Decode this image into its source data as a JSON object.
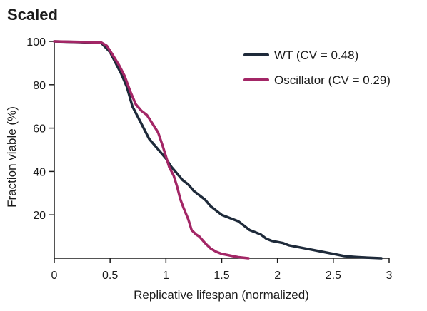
{
  "chart_data": {
    "type": "line",
    "title": "Scaled",
    "xlabel": "Replicative lifespan (normalized)",
    "ylabel": "Fraction viable (%)",
    "xlim": [
      0,
      3
    ],
    "ylim": [
      0,
      100
    ],
    "xticks": [
      0,
      0.5,
      1,
      1.5,
      2,
      2.5,
      3
    ],
    "xtick_labels": [
      "0",
      "0.5",
      "1",
      "1.5",
      "2",
      "2.5",
      "3"
    ],
    "yticks": [
      20,
      40,
      60,
      80,
      100
    ],
    "ytick_labels": [
      "20",
      "40",
      "60",
      "80",
      "100"
    ],
    "grid": false,
    "legend_position": "top-right",
    "series": [
      {
        "name": "WT (CV = 0.48)",
        "color": "#1e2a3a",
        "x": [
          0,
          0.2,
          0.42,
          0.5,
          0.55,
          0.6,
          0.65,
          0.7,
          0.75,
          0.8,
          0.85,
          0.9,
          0.95,
          1.0,
          1.05,
          1.1,
          1.15,
          1.2,
          1.25,
          1.3,
          1.35,
          1.4,
          1.45,
          1.5,
          1.55,
          1.6,
          1.65,
          1.7,
          1.75,
          1.8,
          1.85,
          1.9,
          1.95,
          2.0,
          2.05,
          2.1,
          2.2,
          2.3,
          2.4,
          2.5,
          2.6,
          2.7,
          2.8,
          2.93
        ],
        "y": [
          100,
          99.7,
          99.3,
          95,
          90,
          85,
          79,
          70,
          65,
          60,
          55,
          52,
          49,
          46,
          42,
          39,
          36,
          34,
          31,
          29,
          27,
          24,
          22,
          20,
          19,
          18,
          17,
          15,
          13,
          12,
          11,
          9,
          8,
          7.5,
          7,
          6,
          5,
          4,
          3,
          2,
          1,
          0.6,
          0.3,
          0
        ]
      },
      {
        "name": "Oscillator (CV = 0.29)",
        "color": "#a32666",
        "x": [
          0,
          0.2,
          0.42,
          0.47,
          0.52,
          0.58,
          0.63,
          0.68,
          0.73,
          0.78,
          0.83,
          0.88,
          0.93,
          0.97,
          1.0,
          1.03,
          1.07,
          1.1,
          1.13,
          1.16,
          1.2,
          1.23,
          1.27,
          1.3,
          1.35,
          1.4,
          1.45,
          1.5,
          1.55,
          1.6,
          1.65,
          1.74
        ],
        "y": [
          100,
          99.8,
          99.5,
          98,
          94,
          89,
          84,
          77,
          71,
          68,
          66,
          62,
          58,
          52,
          47,
          42,
          38,
          33,
          27,
          23,
          18,
          13,
          11,
          10,
          7,
          4.5,
          3,
          2,
          1.5,
          1,
          0.5,
          0
        ]
      }
    ]
  }
}
